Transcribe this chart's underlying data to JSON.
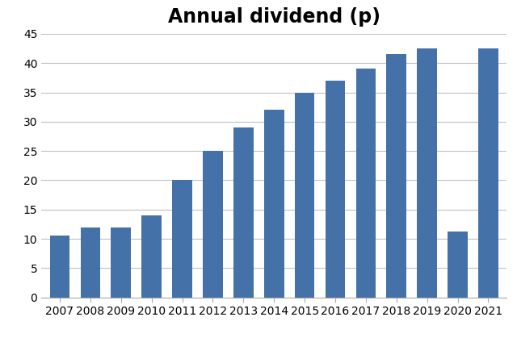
{
  "title": "Annual dividend (p)",
  "years": [
    2007,
    2008,
    2009,
    2010,
    2011,
    2012,
    2013,
    2014,
    2015,
    2016,
    2017,
    2018,
    2019,
    2020,
    2021
  ],
  "values": [
    10.5,
    12.0,
    12.0,
    14.0,
    20.0,
    25.0,
    29.0,
    32.0,
    35.0,
    37.0,
    39.0,
    41.5,
    42.5,
    11.3,
    42.5
  ],
  "bar_color": "#4472a8",
  "ylim": [
    0,
    45
  ],
  "yticks": [
    0,
    5,
    10,
    15,
    20,
    25,
    30,
    35,
    40,
    45
  ],
  "title_fontsize": 17,
  "tick_fontsize": 10,
  "background_color": "#ffffff",
  "grid_color": "#c0c0c0",
  "bar_width": 0.65
}
